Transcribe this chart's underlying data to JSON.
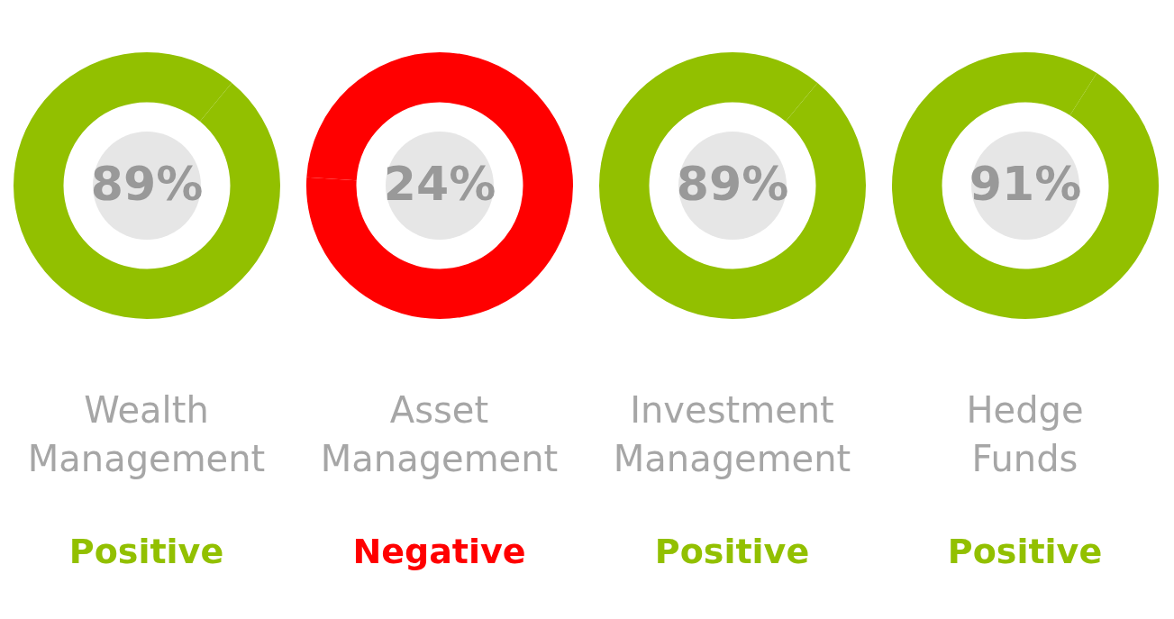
{
  "chart_data": [
    {
      "type": "donut",
      "title": "Wealth Management",
      "subtitle": "Positive",
      "categories": [
        null,
        null
      ],
      "values": [
        11,
        89
      ],
      "colors": [
        "#92c000",
        "#92c000"
      ],
      "value_labels": [
        null,
        "89%"
      ],
      "legend": false
    },
    {
      "type": "donut",
      "title": "Asset Management",
      "subtitle": "Negative",
      "categories": [
        null,
        null
      ],
      "values": [
        76,
        24
      ],
      "colors": [
        "#ff0000",
        "#ff0000"
      ],
      "value_labels": [
        null,
        "24%"
      ],
      "legend": false
    },
    {
      "type": "donut",
      "title": "Investment Management",
      "subtitle": "Positive",
      "categories": [
        null,
        null
      ],
      "values": [
        11,
        89
      ],
      "colors": [
        "#92c000",
        "#92c000"
      ],
      "value_labels": [
        null,
        "89%"
      ],
      "legend": false
    },
    {
      "type": "donut",
      "title": "Hedge Funds",
      "subtitle": "Positive",
      "categories": [
        null,
        null
      ],
      "values": [
        9,
        91
      ],
      "colors": [
        "#92c000",
        "#92c000"
      ],
      "value_labels": [
        null,
        "91%"
      ],
      "legend": false
    }
  ]
}
